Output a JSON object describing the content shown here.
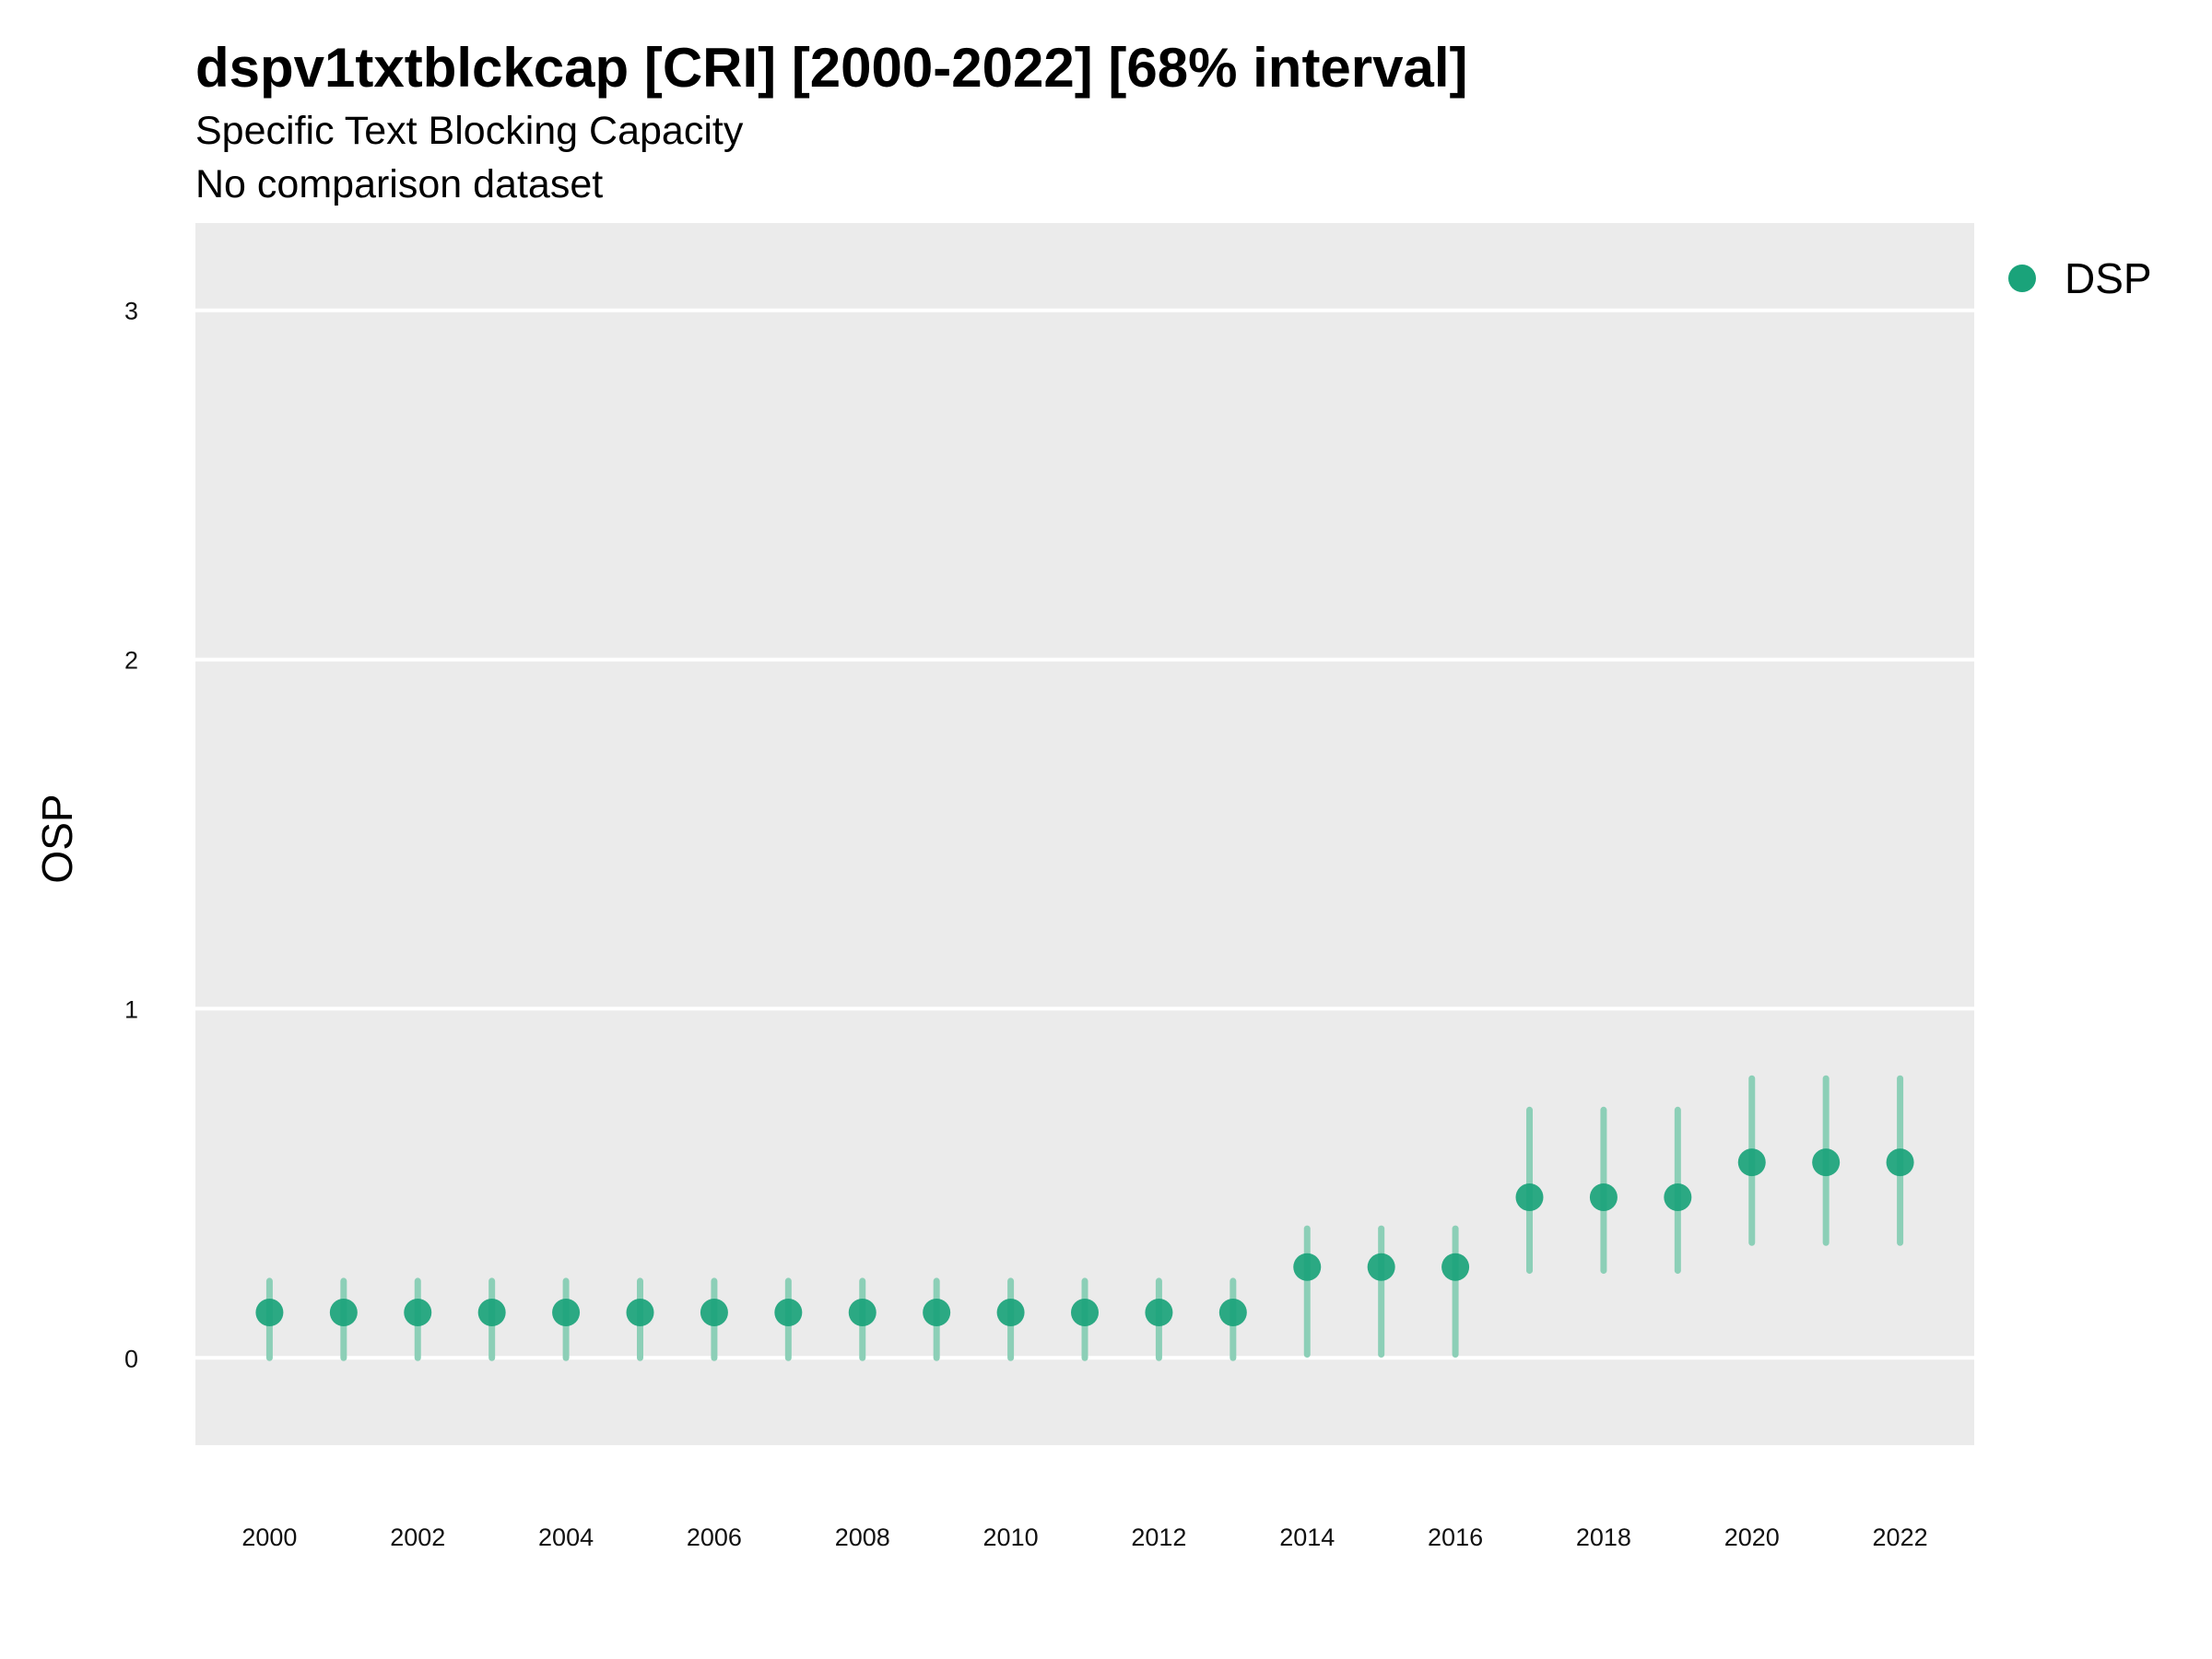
{
  "chart_data": {
    "type": "scatter",
    "title": "dspv1txtblckcap [CRI] [2000-2022] [68% interval]",
    "subtitle": "Specific Text Blocking Capacity",
    "subtitle2": "No comparison dataset",
    "xlabel": "",
    "ylabel": "OSP",
    "xlim": [
      1999,
      2023
    ],
    "ylim": [
      -0.25,
      3.25
    ],
    "x_ticks": [
      2000,
      2002,
      2004,
      2006,
      2008,
      2010,
      2012,
      2014,
      2016,
      2018,
      2020,
      2022
    ],
    "y_ticks": [
      0,
      1,
      2,
      3
    ],
    "grid": true,
    "legend_position": "right",
    "colors": {
      "point": "#1aa37a",
      "interval": "#8ccfb7",
      "panel": "#ebebeb",
      "grid": "#ffffff"
    },
    "series": [
      {
        "name": "DSP",
        "x": [
          2000,
          2001,
          2002,
          2003,
          2004,
          2005,
          2006,
          2007,
          2008,
          2009,
          2010,
          2011,
          2012,
          2013,
          2014,
          2015,
          2016,
          2017,
          2018,
          2019,
          2020,
          2021,
          2022
        ],
        "y": [
          0.13,
          0.13,
          0.13,
          0.13,
          0.13,
          0.13,
          0.13,
          0.13,
          0.13,
          0.13,
          0.13,
          0.13,
          0.13,
          0.13,
          0.26,
          0.26,
          0.26,
          0.46,
          0.46,
          0.46,
          0.56,
          0.56,
          0.56
        ],
        "lower": [
          0.0,
          0.0,
          0.0,
          0.0,
          0.0,
          0.0,
          0.0,
          0.0,
          0.0,
          0.0,
          0.0,
          0.0,
          0.0,
          0.0,
          0.01,
          0.01,
          0.01,
          0.25,
          0.25,
          0.25,
          0.33,
          0.33,
          0.33
        ],
        "upper": [
          0.22,
          0.22,
          0.22,
          0.22,
          0.22,
          0.22,
          0.22,
          0.22,
          0.22,
          0.22,
          0.22,
          0.22,
          0.22,
          0.22,
          0.37,
          0.37,
          0.37,
          0.71,
          0.71,
          0.71,
          0.8,
          0.8,
          0.8
        ]
      }
    ]
  }
}
